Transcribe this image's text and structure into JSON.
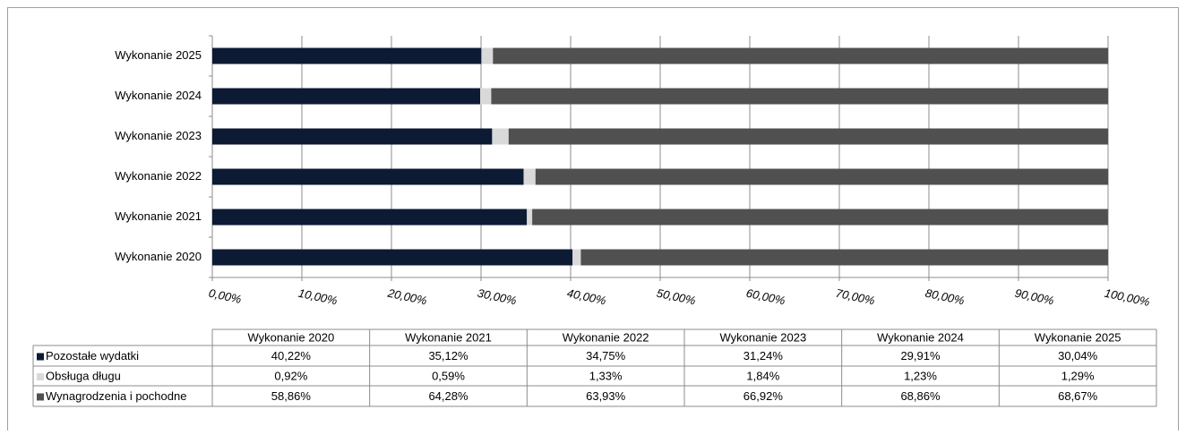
{
  "chart_data": {
    "type": "bar",
    "orientation": "horizontal",
    "stacked": true,
    "categories": [
      "Wykonanie 2020",
      "Wykonanie 2021",
      "Wykonanie 2022",
      "Wykonanie 2023",
      "Wykonanie 2024",
      "Wykonanie 2025"
    ],
    "series": [
      {
        "name": "Pozostałe wydatki",
        "color": "#0d1a33",
        "values": [
          40.22,
          35.12,
          34.75,
          31.24,
          29.91,
          30.04
        ],
        "value_labels": [
          "40,22%",
          "35,12%",
          "34,75%",
          "31,24%",
          "29,91%",
          "30,04%"
        ]
      },
      {
        "name": "Obsługa długu",
        "color": "#d9d9d9",
        "values": [
          0.92,
          0.59,
          1.33,
          1.84,
          1.23,
          1.29
        ],
        "value_labels": [
          "0,92%",
          "0,59%",
          "1,33%",
          "1,84%",
          "1,23%",
          "1,29%"
        ]
      },
      {
        "name": "Wynagrodzenia i pochodne",
        "color": "#505050",
        "values": [
          58.86,
          64.28,
          63.93,
          66.92,
          68.86,
          68.67
        ],
        "value_labels": [
          "58,86%",
          "64,28%",
          "63,93%",
          "66,92%",
          "68,86%",
          "68,67%"
        ]
      }
    ],
    "xlim": [
      0,
      100
    ],
    "xticks": [
      {
        "value": 0,
        "label": "0,00%"
      },
      {
        "value": 10,
        "label": "10,00%"
      },
      {
        "value": 20,
        "label": "20,00%"
      },
      {
        "value": 30,
        "label": "30,00%"
      },
      {
        "value": 40,
        "label": "40,00%"
      },
      {
        "value": 50,
        "label": "50,00%"
      },
      {
        "value": 60,
        "label": "60,00%"
      },
      {
        "value": 70,
        "label": "70,00%"
      },
      {
        "value": 80,
        "label": "80,00%"
      },
      {
        "value": 90,
        "label": "90,00%"
      },
      {
        "value": 100,
        "label": "100,00%"
      }
    ],
    "grid": true
  }
}
